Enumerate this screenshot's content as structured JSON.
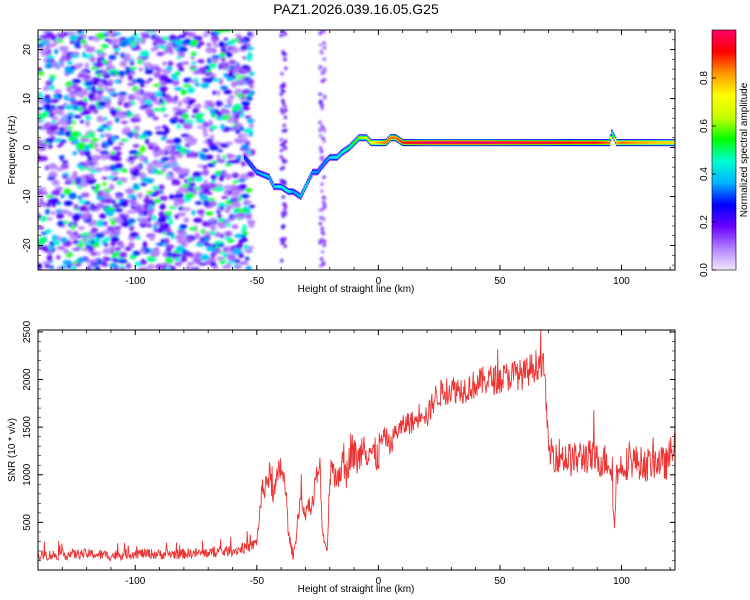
{
  "title": "PAZ1.2026.039.16.05.G25",
  "chart_data": [
    {
      "type": "heatmap",
      "name": "spectrogram",
      "xlabel": "Height of straight line (km)",
      "ylabel": "Frequency (Hz)",
      "xlim": [
        -140,
        122
      ],
      "ylim": [
        -25,
        24
      ],
      "xticks": [
        -100,
        -50,
        0,
        50,
        100
      ],
      "yticks": [
        -20,
        -10,
        0,
        10,
        20
      ],
      "colorbar": {
        "label": "Normalized spectral amplitude",
        "range": [
          0.0,
          1.0
        ],
        "ticks": [
          0.0,
          0.2,
          0.4,
          0.6,
          0.8
        ],
        "colors": [
          "#f2e8ff",
          "#b37fff",
          "#6600ff",
          "#0000ff",
          "#00b4ff",
          "#00ffd0",
          "#00ff00",
          "#c8ff00",
          "#ffff00",
          "#ff9900",
          "#ff0000",
          "#ff0066"
        ]
      },
      "noise_region_km": [
        -140,
        -52
      ],
      "signal_track": {
        "height_km": [
          -55,
          -50,
          -45,
          -43,
          -40,
          -37,
          -35,
          -32,
          -30,
          -27,
          -25,
          -22,
          -20,
          -17,
          -15,
          -12,
          -10,
          -8,
          -5,
          -3,
          0,
          3,
          5,
          7,
          10,
          15,
          20,
          30,
          40,
          50,
          60,
          70,
          80,
          90,
          95,
          96,
          98,
          100,
          110,
          122
        ],
        "freq_hz": [
          -2,
          -5,
          -6,
          -8,
          -8,
          -9,
          -9,
          -10,
          -8,
          -5,
          -5,
          -3,
          -2,
          -2,
          -1,
          0,
          1,
          2,
          2,
          1,
          1,
          1,
          2,
          2,
          1,
          1,
          1,
          1,
          1,
          1,
          1,
          1,
          1,
          1,
          1,
          3,
          1,
          1,
          1,
          1
        ],
        "amplitude": [
          0.3,
          0.35,
          0.4,
          0.4,
          0.45,
          0.45,
          0.35,
          0.4,
          0.45,
          0.35,
          0.35,
          0.35,
          0.4,
          0.45,
          0.45,
          0.5,
          0.55,
          0.6,
          0.65,
          0.7,
          0.8,
          0.85,
          0.85,
          0.85,
          0.9,
          0.95,
          1.0,
          1.0,
          1.0,
          0.98,
          0.95,
          0.95,
          0.9,
          0.9,
          0.85,
          0.45,
          0.8,
          0.85,
          0.8,
          0.75
        ]
      }
    },
    {
      "type": "line",
      "name": "snr",
      "xlabel": "Height of straight line (km)",
      "ylabel": "SNR (10 * v/v)",
      "xlim": [
        -140,
        122
      ],
      "ylim": [
        0,
        2520
      ],
      "xticks": [
        -100,
        -50,
        0,
        50,
        100
      ],
      "yticks": [
        500,
        1000,
        1500,
        2000,
        2500
      ],
      "color": "#ee3333",
      "series": [
        {
          "name": "SNR",
          "x": [
            -140,
            -130,
            -120,
            -110,
            -100,
            -90,
            -80,
            -70,
            -60,
            -52,
            -50,
            -48,
            -45,
            -43,
            -42,
            -40,
            -38,
            -37,
            -36,
            -35,
            -34,
            -33,
            -32,
            -30,
            -29,
            -28,
            -27,
            -26,
            -25,
            -24,
            -23,
            -22,
            -21,
            -20,
            -19,
            -18,
            -17,
            -15,
            -13,
            -12,
            -11,
            -10,
            -8,
            -6,
            -5,
            -4,
            -2,
            0,
            1,
            3,
            5,
            7,
            10,
            12,
            15,
            18,
            20,
            23,
            25,
            30,
            35,
            40,
            45,
            50,
            55,
            60,
            62,
            65,
            67,
            68,
            69,
            70,
            75,
            80,
            85,
            90,
            95,
            96,
            97,
            98,
            100,
            105,
            110,
            115,
            118,
            120,
            122
          ],
          "y": [
            150,
            160,
            170,
            150,
            175,
            165,
            170,
            180,
            200,
            250,
            300,
            800,
            1000,
            800,
            900,
            1100,
            800,
            400,
            250,
            150,
            300,
            600,
            750,
            500,
            800,
            600,
            700,
            900,
            1000,
            1050,
            400,
            300,
            200,
            1000,
            1200,
            900,
            1000,
            1100,
            1000,
            1200,
            1300,
            1200,
            1150,
            1350,
            1250,
            1300,
            1200,
            1200,
            1350,
            1400,
            1300,
            1450,
            1500,
            1550,
            1550,
            1700,
            1600,
            1800,
            1850,
            1900,
            1900,
            1950,
            2000,
            2000,
            2050,
            2050,
            2100,
            2150,
            2200,
            2100,
            1800,
            1250,
            1200,
            1150,
            1200,
            1150,
            1150,
            1000,
            450,
            1000,
            1100,
            1150,
            1100,
            1150,
            1100,
            1200,
            1350
          ]
        }
      ]
    }
  ]
}
